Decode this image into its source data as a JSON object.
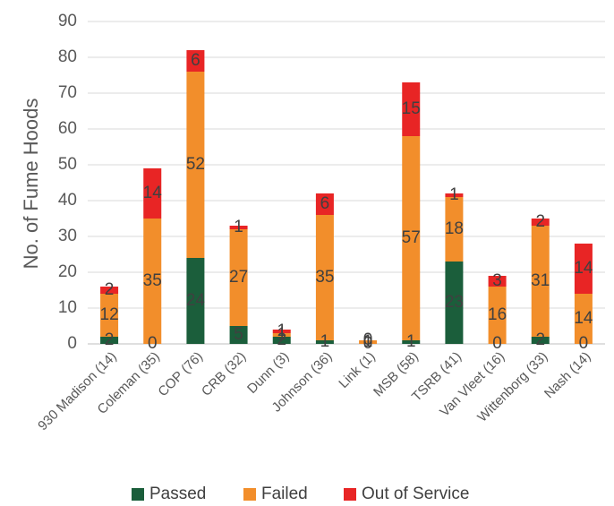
{
  "chart_data": {
    "type": "bar",
    "stacked": true,
    "ylabel": "No. of Fume Hoods",
    "xlabel": "",
    "ylim": [
      0,
      90
    ],
    "yticks": [
      0,
      10,
      20,
      30,
      40,
      50,
      60,
      70,
      80,
      90
    ],
    "grid": true,
    "legend_position": "bottom",
    "categories": [
      "930 Madison (14)",
      "Coleman (35)",
      "COP (76)",
      "CRB (32)",
      "Dunn (3)",
      "Johnson (36)",
      "Link (1)",
      "MSB (58)",
      "TSRB (41)",
      "Van Vleet (16)",
      "Wittenborg (33)",
      "Nash (14)"
    ],
    "series": [
      {
        "name": "Passed",
        "color": "#1b5e3b",
        "values": [
          2,
          0,
          24,
          5,
          2,
          1,
          0,
          1,
          23,
          0,
          2,
          0
        ]
      },
      {
        "name": "Failed",
        "color": "#f28e2b",
        "values": [
          12,
          35,
          52,
          27,
          1,
          35,
          1,
          57,
          18,
          16,
          31,
          14
        ]
      },
      {
        "name": "Out of Service",
        "color": "#e82525",
        "values": [
          2,
          14,
          6,
          1,
          1,
          6,
          0,
          15,
          1,
          3,
          2,
          14
        ]
      }
    ]
  }
}
